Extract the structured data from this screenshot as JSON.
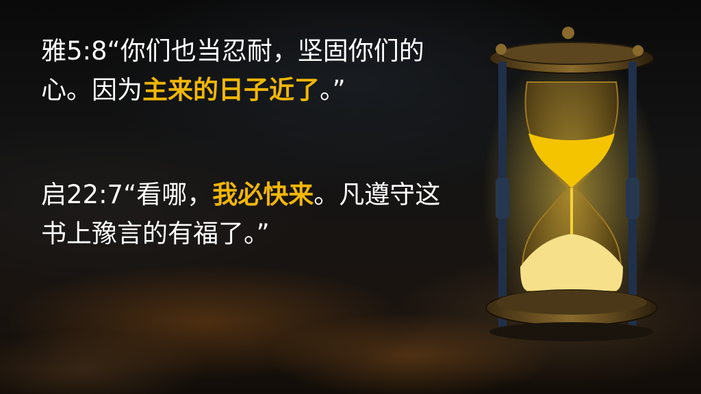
{
  "slide": {
    "verse1": {
      "ref": "雅5:8",
      "open_quote": "“",
      "text_before": "你们也当忍耐，坚固你们的心。因为",
      "highlight": "主来的日子近了",
      "text_after": "。”"
    },
    "verse2": {
      "ref": "启22:7",
      "open_quote": "“",
      "text_before": "看哪，",
      "highlight": "我必快来",
      "text_after": "。凡遵守这书上豫言的有福了。”"
    },
    "colors": {
      "text": "#ffffff",
      "highlight": "#f2b705",
      "sand": "#f5c400"
    },
    "image": {
      "icon": "hourglass-icon"
    }
  }
}
